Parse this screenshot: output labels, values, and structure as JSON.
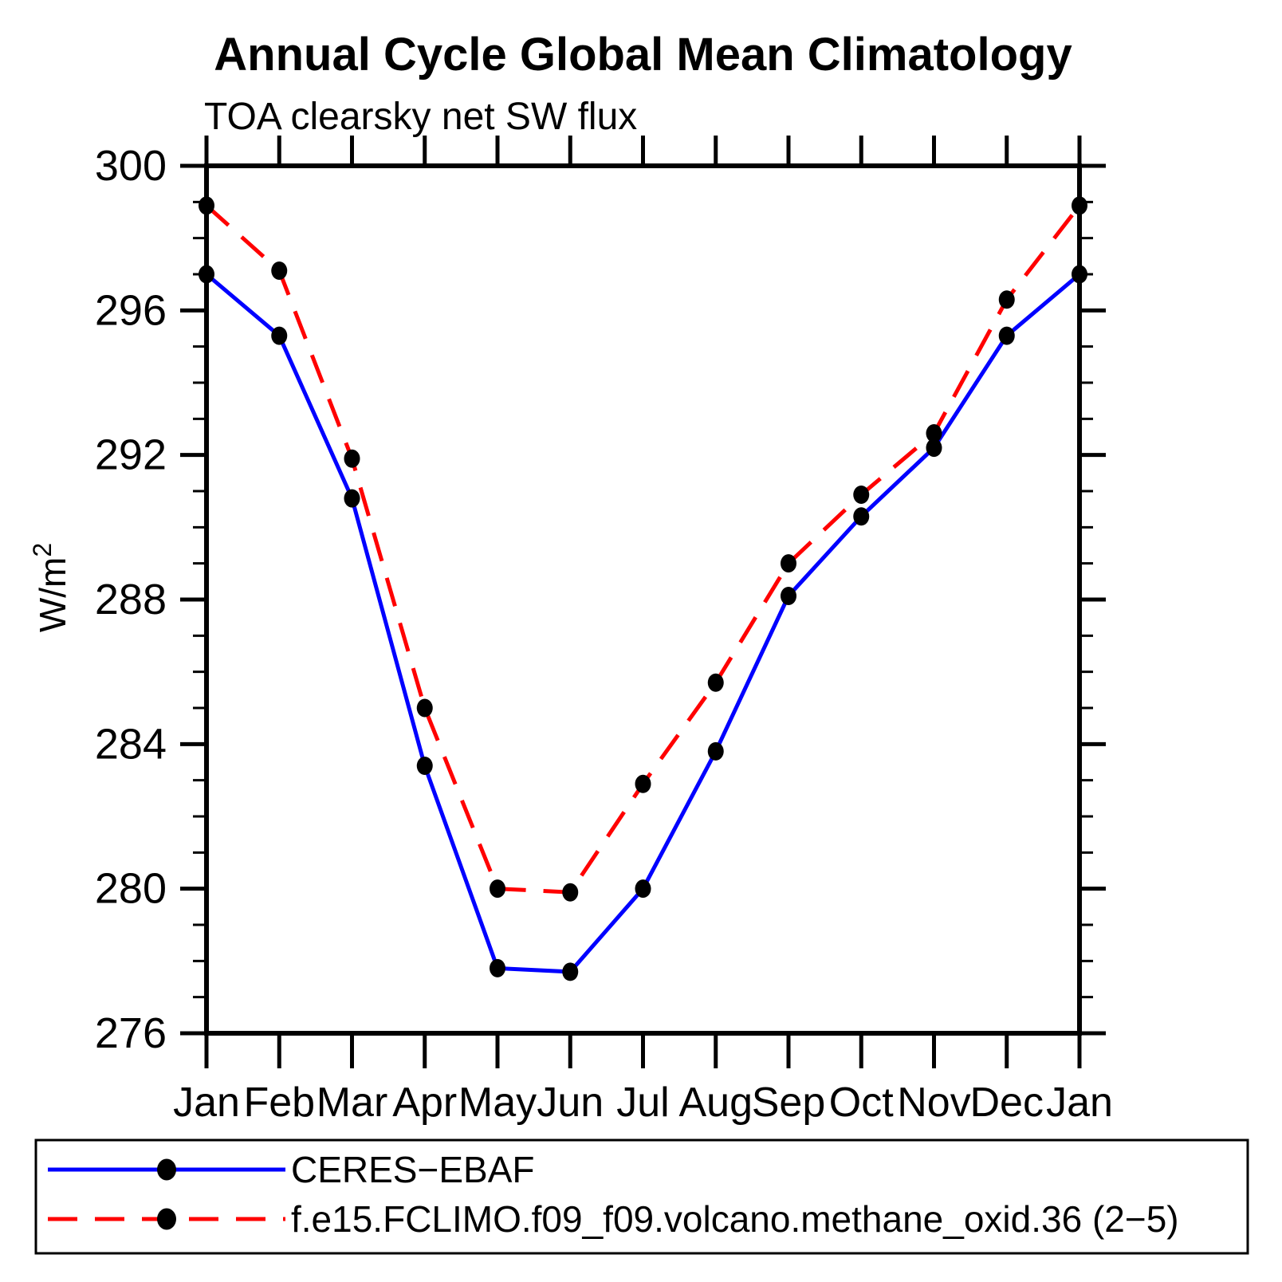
{
  "title": "Annual Cycle Global Mean Climatology",
  "subtitle": "TOA clearsky net SW flux",
  "axes": {
    "y_axis_label": "W/m²",
    "y_tick_labels": [
      "300",
      "296",
      "292",
      "288",
      "284",
      "280",
      "276"
    ],
    "x_tick_labels": [
      "Jan",
      "Feb",
      "Mar",
      "Apr",
      "May",
      "Jun",
      "Jul",
      "Aug",
      "Sep",
      "Oct",
      "Nov",
      "Dec",
      "Jan"
    ]
  },
  "legend": {
    "entries": [
      {
        "label": "CERES−EBAF",
        "line_color": "#0000ff",
        "line_style": "solid",
        "marker": "filled-circle",
        "marker_color": "#000000"
      },
      {
        "label": "f.e15.FCLIMO.f09_f09.volcano.methane_oxid.36 (2−5)",
        "line_color": "#ff0000",
        "line_style": "dashed",
        "marker": "filled-circle",
        "marker_color": "#000000"
      }
    ]
  },
  "chart_data": {
    "type": "line",
    "title": "Annual Cycle Global Mean Climatology",
    "subtitle": "TOA clearsky net SW flux",
    "xlabel": "",
    "ylabel": "W/m²",
    "categories": [
      "Jan",
      "Feb",
      "Mar",
      "Apr",
      "May",
      "Jun",
      "Jul",
      "Aug",
      "Sep",
      "Oct",
      "Nov",
      "Dec",
      "Jan"
    ],
    "series": [
      {
        "name": "CERES−EBAF",
        "color": "#0000ff",
        "style": "solid",
        "marker": "filled-circle",
        "marker_color": "#000000",
        "values": [
          297.0,
          295.3,
          290.8,
          283.4,
          277.8,
          277.7,
          280.0,
          283.8,
          288.1,
          290.3,
          292.2,
          295.3,
          297.0
        ]
      },
      {
        "name": "f.e15.FCLIMO.f09_f09.volcano.methane_oxid.36 (2−5)",
        "color": "#ff0000",
        "style": "dashed",
        "marker": "filled-circle",
        "marker_color": "#000000",
        "values": [
          298.9,
          297.1,
          291.9,
          285.0,
          280.0,
          279.9,
          282.9,
          285.7,
          289.0,
          290.9,
          292.6,
          296.3,
          298.9
        ]
      }
    ],
    "ylim": [
      276,
      300
    ],
    "y_major_ticks": [
      276,
      280,
      284,
      288,
      292,
      296,
      300
    ],
    "y_minor_step": 1,
    "grid": false,
    "legend_position": "bottom",
    "frame": "box-with-outward-ticks"
  }
}
